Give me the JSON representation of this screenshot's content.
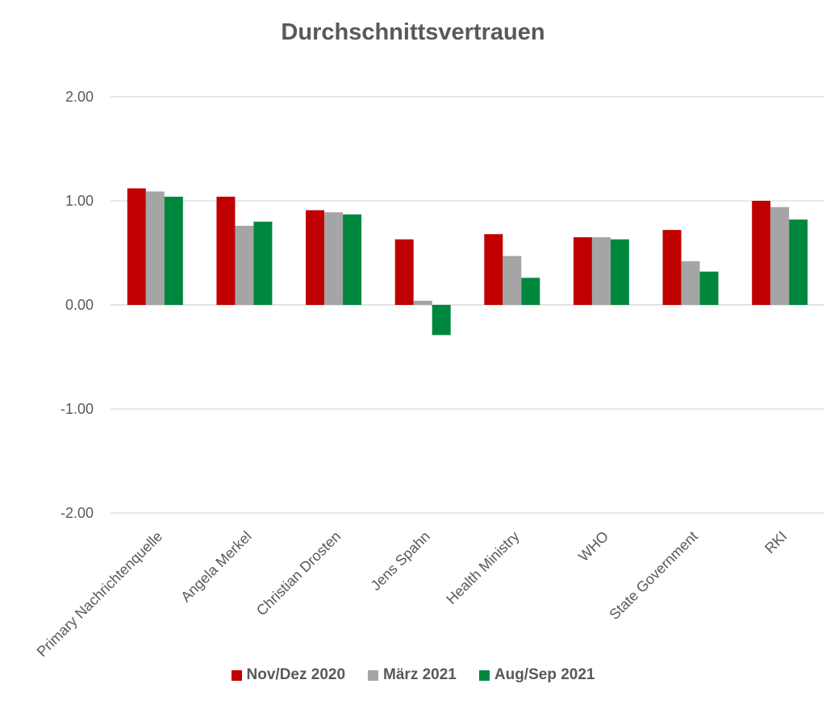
{
  "chart_data": {
    "type": "bar",
    "title": "Durchschnittsvertrauen",
    "xlabel": "",
    "ylabel": "",
    "ylim": [
      -2,
      2
    ],
    "yticks": [
      "2.00",
      "1.00",
      "0.00",
      "-1.00",
      "-2.00"
    ],
    "grid": true,
    "legend_position": "bottom",
    "categories": [
      "Primary Nachrichtenquelle",
      "Angela Merkel",
      "Christian Drosten",
      "Jens Spahn",
      "Health Ministry",
      "WHO",
      "State Government",
      "RKI"
    ],
    "series": [
      {
        "name": "Nov/Dez 2020",
        "color": "#C00000",
        "values": [
          1.12,
          1.04,
          0.91,
          0.63,
          0.68,
          0.65,
          0.72,
          1.0
        ]
      },
      {
        "name": "März 2021",
        "color": "#A5A5A5",
        "values": [
          1.09,
          0.76,
          0.89,
          0.04,
          0.47,
          0.65,
          0.42,
          0.94
        ]
      },
      {
        "name": "Aug/Sep 2021",
        "color": "#00873E",
        "values": [
          1.04,
          0.8,
          0.87,
          -0.29,
          0.26,
          0.63,
          0.32,
          0.82
        ]
      }
    ]
  }
}
